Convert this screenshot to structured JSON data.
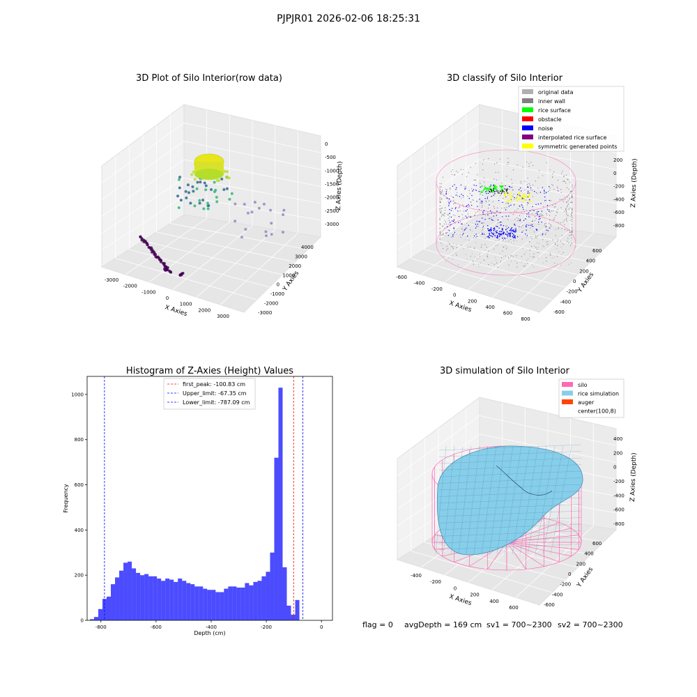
{
  "figure": {
    "suptitle": "PJPJR01 2026-02-06 18:25:31",
    "footer": {
      "flag": "flag = 0",
      "avg_depth": "avgDepth = 169 cm",
      "sv1": "sv1 = 700~2300",
      "sv2": "sv2 = 700~2300"
    }
  },
  "panel_raw": {
    "title": "3D Plot of Silo Interior(row data)",
    "xlabel": "X Axies",
    "ylabel": "Y Axies",
    "zlabel": "Z Axies (Depth)",
    "x_ticks": [
      "-3000",
      "-2000",
      "-1000",
      "0",
      "1000",
      "2000",
      "3000"
    ],
    "y_ticks": [
      "-3000",
      "-2000",
      "-1000",
      "0",
      "1000",
      "2000",
      "3000",
      "4000"
    ],
    "z_ticks": [
      "0",
      "-500",
      "-1000",
      "-1500",
      "-2000",
      "-2500",
      "-3000"
    ],
    "colormap": [
      "#440154",
      "#31688e",
      "#35b779",
      "#b5de2b",
      "#fde725"
    ]
  },
  "panel_classify": {
    "title": "3D classify of Silo Interior",
    "xlabel": "X Axies",
    "ylabel": "Y Axies",
    "zlabel": "Z Axies (Depth)",
    "x_ticks": [
      "-600",
      "-400",
      "-200",
      "0",
      "200",
      "400",
      "600",
      "800"
    ],
    "y_ticks": [
      "-600",
      "-400",
      "-200",
      "0",
      "200",
      "400",
      "600"
    ],
    "z_ticks": [
      "200",
      "0",
      "-200",
      "-400",
      "-600",
      "-800"
    ],
    "legend": [
      {
        "label": "original data",
        "color": "#b0b0b0"
      },
      {
        "label": "inner wall",
        "color": "#808080"
      },
      {
        "label": "rice surface",
        "color": "#00ff00"
      },
      {
        "label": "obstacle",
        "color": "#ff0000"
      },
      {
        "label": "noise",
        "color": "#0000ff"
      },
      {
        "label": "interpolated rice surface",
        "color": "#800080"
      },
      {
        "label": "symmetric generated points",
        "color": "#ffff00"
      }
    ]
  },
  "panel_sim": {
    "title": "3D simulation of Silo Interior",
    "xlabel": "X Axies",
    "ylabel": "Y Axies",
    "zlabel": "Z Axies (Depth)",
    "x_ticks": [
      "-400",
      "-200",
      "0",
      "200",
      "400",
      "600"
    ],
    "y_ticks": [
      "-600",
      "-400",
      "-200",
      "0",
      "200",
      "400",
      "600"
    ],
    "z_ticks": [
      "400",
      "200",
      "0",
      "-200",
      "-400",
      "-600",
      "-800"
    ],
    "legend": [
      {
        "label": "silo",
        "color": "#ff69b4"
      },
      {
        "label": "rice simulation",
        "color": "#87ceeb"
      },
      {
        "label": "auger",
        "color": "#ff4500"
      },
      {
        "label": "center(100,8)",
        "color": "#ffffff"
      }
    ]
  },
  "chart_data": [
    {
      "type": "bar",
      "title": "Histogram of Z-Axies (Height) Values",
      "xlabel": "Depth (cm)",
      "ylabel": "Frequency",
      "xlim": [
        -850,
        40
      ],
      "ylim": [
        0,
        1080
      ],
      "x_ticks": [
        -800,
        -600,
        -400,
        -200,
        0
      ],
      "y_ticks": [
        0,
        200,
        400,
        600,
        800,
        1000
      ],
      "bar_color": "#0000ff",
      "bin_width": 15.2,
      "bin_start": -840,
      "values": [
        5,
        15,
        50,
        95,
        105,
        160,
        190,
        220,
        255,
        260,
        230,
        210,
        200,
        205,
        195,
        195,
        185,
        175,
        185,
        180,
        170,
        185,
        175,
        165,
        160,
        150,
        150,
        140,
        135,
        135,
        125,
        125,
        140,
        150,
        150,
        145,
        145,
        165,
        155,
        170,
        175,
        195,
        215,
        300,
        720,
        1030,
        235,
        65,
        25,
        90
      ],
      "reference_lines": [
        {
          "label": "first_peak: -100.83 cm",
          "x": -100.83,
          "color": "#ff0000"
        },
        {
          "label": "Upper_limit: -67.35 cm",
          "x": -67.35,
          "color": "#0000ff"
        },
        {
          "label": "Lower_limit: -787.09 cm",
          "x": -787.09,
          "color": "#0000ff"
        }
      ],
      "legend_position": "upper-center",
      "grid": false
    }
  ]
}
